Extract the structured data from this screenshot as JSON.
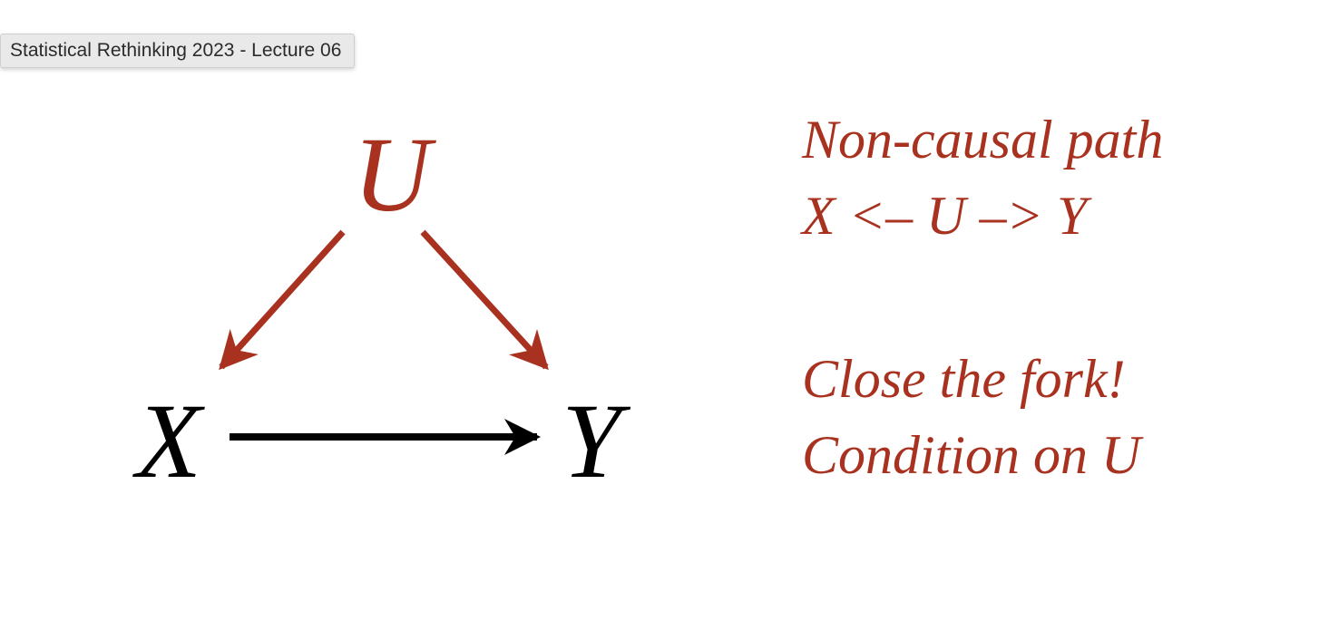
{
  "tooltip": {
    "text": "Statistical Rethinking 2023 - Lecture 06"
  },
  "diagram": {
    "nodes": {
      "u": "U",
      "x": "X",
      "y": "Y"
    },
    "edges": [
      {
        "from": "U",
        "to": "X",
        "color": "#a8321f"
      },
      {
        "from": "U",
        "to": "Y",
        "color": "#a8321f"
      },
      {
        "from": "X",
        "to": "Y",
        "color": "#000000"
      }
    ]
  },
  "notes": {
    "top_line1": "Non-causal path",
    "top_line2": "X <– U –> Y",
    "bottom_line1": "Close the fork!",
    "bottom_line2": "Condition on U"
  },
  "colors": {
    "accent": "#a8321f",
    "ink": "#000000"
  }
}
